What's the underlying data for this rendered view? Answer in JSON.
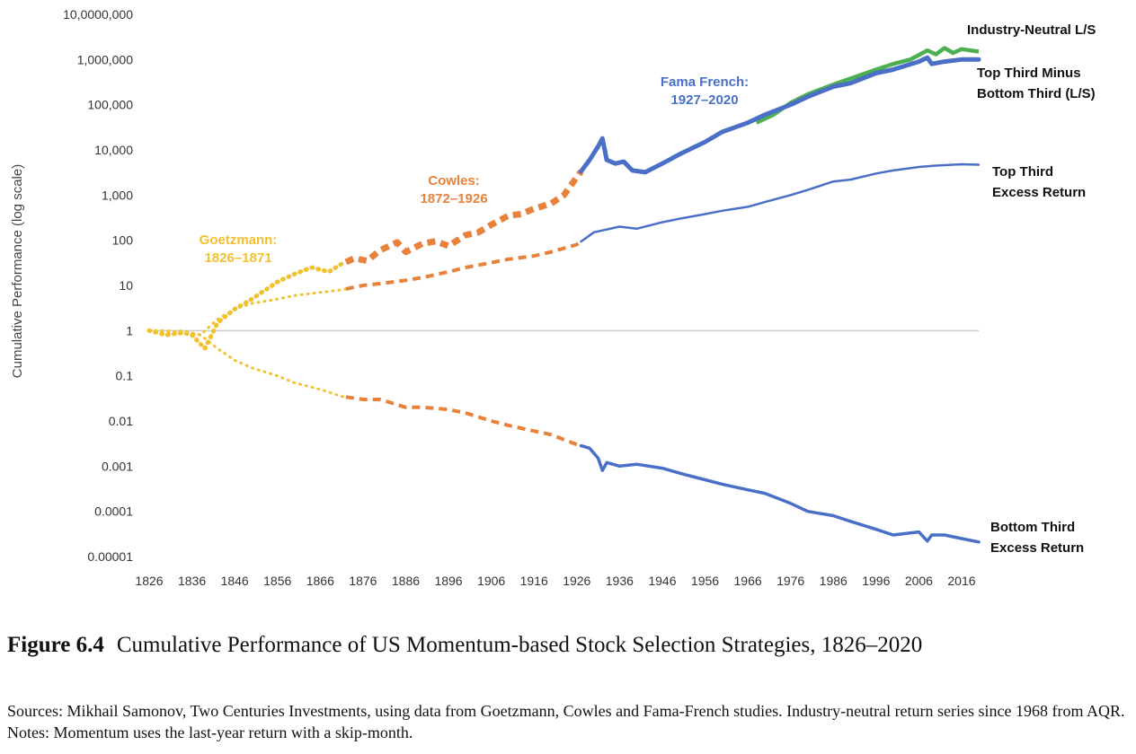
{
  "chart_data": {
    "type": "line",
    "ylabel": "Cumulative Performance (log scale)",
    "yscale": "log",
    "ylim": [
      1e-05,
      10000000
    ],
    "xlim": [
      1826,
      2020
    ],
    "y_ticks": [
      "10,0000,000",
      "1,000,000",
      "100,000",
      "10,000",
      "1,000",
      "100",
      "10",
      "1",
      "0.1",
      "0.01",
      "0.001",
      "0.0001",
      "0.00001"
    ],
    "x_ticks": [
      "1826",
      "1836",
      "1846",
      "1856",
      "1866",
      "1876",
      "1886",
      "1896",
      "1906",
      "1916",
      "1926",
      "1936",
      "1946",
      "1956",
      "1966",
      "1976",
      "1986",
      "1996",
      "2006",
      "2016"
    ],
    "reference_line": 1,
    "era_labels": [
      {
        "line1": "Goetzmann:",
        "line2": "1826–1871",
        "color": "#f2c12e"
      },
      {
        "line1": "Cowles:",
        "line2": "1872–1926",
        "color": "#e8813a"
      },
      {
        "line1": "Fama French:",
        "line2": "1927–2020",
        "color": "#4a6fc7"
      }
    ],
    "eras": [
      {
        "name": "Goetzmann",
        "start": 1826,
        "end": 1871,
        "color": "#f2c12e"
      },
      {
        "name": "Cowles",
        "start": 1872,
        "end": 1926,
        "color": "#e8813a"
      },
      {
        "name": "Fama French",
        "start": 1927,
        "end": 2020,
        "color": "#4a6fc7"
      }
    ],
    "series_labels": [
      {
        "line1": "Industry-Neutral L/S",
        "line2": ""
      },
      {
        "line1": "Top Third Minus",
        "line2": "Bottom Third (L/S)"
      },
      {
        "line1": "Top Third",
        "line2": "Excess Return"
      },
      {
        "line1": "Bottom Third",
        "line2": "Excess Return"
      }
    ],
    "series": [
      {
        "name": "Top Third Minus Bottom Third (L/S)",
        "x": [
          1826,
          1830,
          1834,
          1836,
          1839,
          1842,
          1846,
          1850,
          1856,
          1860,
          1864,
          1868,
          1871,
          1874,
          1877,
          1880,
          1884,
          1886,
          1890,
          1893,
          1896,
          1900,
          1903,
          1906,
          1910,
          1913,
          1916,
          1920,
          1923,
          1926,
          1929,
          1931,
          1932,
          1933,
          1935,
          1937,
          1939,
          1942,
          1946,
          1950,
          1956,
          1960,
          1966,
          1970,
          1976,
          1980,
          1986,
          1990,
          1996,
          2000,
          2006,
          2008,
          2009,
          2012,
          2016,
          2020
        ],
        "y": [
          1,
          0.8,
          0.9,
          0.8,
          0.4,
          1.5,
          3,
          5,
          12,
          18,
          25,
          20,
          30,
          40,
          35,
          60,
          90,
          55,
          85,
          95,
          75,
          130,
          150,
          220,
          350,
          380,
          500,
          650,
          1000,
          2500,
          6000,
          12000,
          18000,
          6000,
          5000,
          5500,
          3500,
          3200,
          5000,
          8000,
          15000,
          25000,
          40000,
          60000,
          100000,
          150000,
          250000,
          300000,
          500000,
          600000,
          900000,
          1100000,
          800000,
          900000,
          1000000,
          1000000
        ]
      },
      {
        "name": "Industry-Neutral L/S",
        "x": [
          1968,
          1972,
          1976,
          1980,
          1986,
          1990,
          1996,
          2000,
          2004,
          2008,
          2010,
          2012,
          2014,
          2016,
          2020
        ],
        "y": [
          40000,
          60000,
          110000,
          170000,
          280000,
          380000,
          600000,
          800000,
          1000000,
          1600000,
          1300000,
          1800000,
          1400000,
          1700000,
          1500000
        ]
      },
      {
        "name": "Top Third Excess Return",
        "x": [
          1826,
          1830,
          1834,
          1838,
          1842,
          1846,
          1850,
          1856,
          1860,
          1866,
          1871,
          1876,
          1880,
          1886,
          1890,
          1896,
          1900,
          1906,
          1910,
          1916,
          1920,
          1926,
          1930,
          1936,
          1940,
          1946,
          1950,
          1956,
          1960,
          1966,
          1970,
          1976,
          1980,
          1986,
          1990,
          1996,
          2000,
          2006,
          2010,
          2016,
          2020
        ],
        "y": [
          1,
          0.9,
          1,
          0.8,
          1.8,
          3,
          4,
          5,
          6,
          7,
          8,
          10,
          11,
          13,
          15,
          20,
          25,
          32,
          38,
          45,
          55,
          80,
          150,
          200,
          180,
          250,
          300,
          380,
          450,
          550,
          700,
          1000,
          1300,
          2000,
          2200,
          3000,
          3500,
          4200,
          4500,
          4800,
          4700
        ]
      },
      {
        "name": "Bottom Third Excess Return",
        "x": [
          1826,
          1830,
          1834,
          1838,
          1842,
          1846,
          1850,
          1856,
          1860,
          1866,
          1871,
          1876,
          1880,
          1886,
          1890,
          1896,
          1900,
          1906,
          1910,
          1916,
          1920,
          1926,
          1929,
          1931,
          1932,
          1933,
          1936,
          1940,
          1946,
          1950,
          1956,
          1960,
          1966,
          1970,
          1976,
          1980,
          1986,
          1990,
          1996,
          2000,
          2006,
          2008,
          2009,
          2012,
          2016,
          2020
        ],
        "y": [
          1,
          1,
          0.9,
          0.8,
          0.4,
          0.22,
          0.15,
          0.1,
          0.07,
          0.05,
          0.035,
          0.03,
          0.03,
          0.02,
          0.02,
          0.018,
          0.015,
          0.01,
          0.008,
          0.006,
          0.005,
          0.003,
          0.0025,
          0.0015,
          0.0008,
          0.0012,
          0.001,
          0.0011,
          0.0009,
          0.0007,
          0.0005,
          0.0004,
          0.0003,
          0.00025,
          0.00015,
          0.0001,
          8e-05,
          6e-05,
          4e-05,
          3e-05,
          3.5e-05,
          2.2e-05,
          3e-05,
          3e-05,
          2.5e-05,
          2.1e-05
        ]
      }
    ]
  },
  "caption": {
    "figure_number": "Figure 6.4",
    "title": "Cumulative Performance of US Momentum-based Stock Selection Strategies, 1826–2020",
    "sources": "Sources: Mikhail Samonov, Two Centuries Investments, using data from Goetzmann, Cowles and Fama-French studies. Industry-neutral return series since 1968 from AQR. Notes: Momentum uses the last-year return with a skip-month."
  },
  "colors": {
    "goetzmann": "#f2c12e",
    "cowles": "#e8813a",
    "fama_french": "#4a6fc7",
    "industry_neutral": "#4caf50",
    "reference": "#cccccc"
  }
}
